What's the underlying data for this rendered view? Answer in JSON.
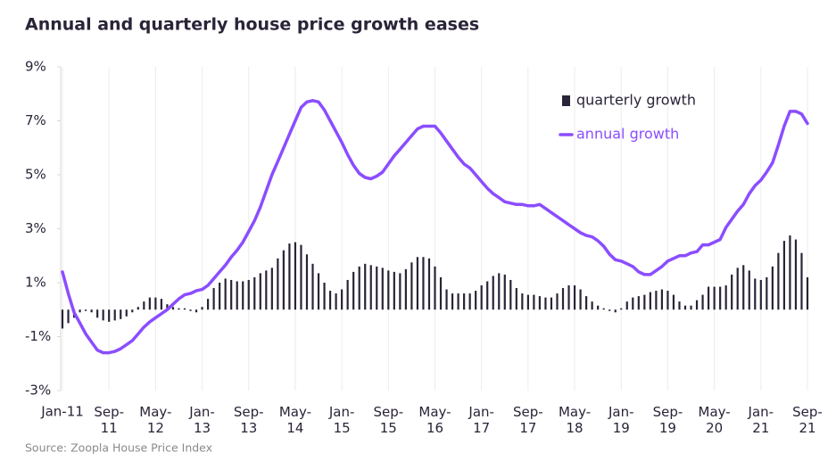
{
  "chart_data": {
    "type": "bar+line",
    "title": "Annual and quarterly house price growth eases",
    "source": "Source: Zoopla House Price Index",
    "categories": [
      "Jan-11",
      null,
      null,
      null,
      null,
      null,
      null,
      null,
      "Sep-11",
      null,
      null,
      null,
      null,
      null,
      null,
      null,
      "May-12",
      null,
      null,
      null,
      null,
      null,
      null,
      null,
      "Jan-13",
      null,
      null,
      null,
      null,
      null,
      null,
      null,
      "Sep-13",
      null,
      null,
      null,
      null,
      null,
      null,
      null,
      "May-14",
      null,
      null,
      null,
      null,
      null,
      null,
      null,
      "Jan-15",
      null,
      null,
      null,
      null,
      null,
      null,
      null,
      "Sep-15",
      null,
      null,
      null,
      null,
      null,
      null,
      null,
      "May-16",
      null,
      null,
      null,
      null,
      null,
      null,
      null,
      "Jan-17",
      null,
      null,
      null,
      null,
      null,
      null,
      null,
      "Sep-17",
      null,
      null,
      null,
      null,
      null,
      null,
      null,
      "May-18",
      null,
      null,
      null,
      null,
      null,
      null,
      null,
      "Jan-19",
      null,
      null,
      null,
      null,
      null,
      null,
      null,
      "Sep-19",
      null,
      null,
      null,
      null,
      null,
      null,
      null,
      "May-20",
      null,
      null,
      null,
      null,
      null,
      null,
      null,
      "Jan-21",
      null,
      null,
      null,
      null,
      null,
      null,
      null,
      "Sep-21"
    ],
    "series": [
      {
        "name": "quarterly growth",
        "type": "bar",
        "color": "#2a2438",
        "values": [
          -0.7,
          -0.5,
          -0.3,
          -0.1,
          -0.05,
          -0.1,
          -0.3,
          -0.4,
          -0.45,
          -0.4,
          -0.35,
          -0.25,
          -0.1,
          0.1,
          0.3,
          0.45,
          0.45,
          0.4,
          0.2,
          0.1,
          0.05,
          0.05,
          -0.05,
          -0.1,
          0.1,
          0.4,
          0.8,
          1.0,
          1.15,
          1.1,
          1.05,
          1.05,
          1.1,
          1.2,
          1.35,
          1.45,
          1.55,
          1.9,
          2.2,
          2.45,
          2.5,
          2.4,
          2.05,
          1.7,
          1.35,
          1.0,
          0.7,
          0.6,
          0.75,
          1.1,
          1.4,
          1.6,
          1.7,
          1.65,
          1.6,
          1.55,
          1.45,
          1.4,
          1.35,
          1.5,
          1.75,
          1.95,
          1.95,
          1.9,
          1.6,
          1.2,
          0.75,
          0.6,
          0.6,
          0.6,
          0.6,
          0.7,
          0.9,
          1.05,
          1.25,
          1.35,
          1.3,
          1.1,
          0.8,
          0.6,
          0.55,
          0.55,
          0.5,
          0.45,
          0.45,
          0.6,
          0.8,
          0.9,
          0.9,
          0.75,
          0.5,
          0.3,
          0.15,
          0.05,
          -0.05,
          -0.1,
          0.05,
          0.3,
          0.45,
          0.5,
          0.55,
          0.65,
          0.7,
          0.75,
          0.7,
          0.55,
          0.3,
          0.15,
          0.15,
          0.35,
          0.55,
          0.85,
          0.85,
          0.85,
          0.9,
          1.3,
          1.55,
          1.65,
          1.45,
          1.15,
          1.1,
          1.2,
          1.6,
          2.1,
          2.55,
          2.75,
          2.6,
          2.1,
          1.2
        ]
      },
      {
        "name": "annual growth",
        "type": "line",
        "color": "#8b4dff",
        "values": [
          1.4,
          0.6,
          -0.1,
          -0.5,
          -0.9,
          -1.2,
          -1.5,
          -1.6,
          -1.6,
          -1.55,
          -1.45,
          -1.3,
          -1.15,
          -0.9,
          -0.65,
          -0.45,
          -0.3,
          -0.15,
          0.0,
          0.2,
          0.4,
          0.55,
          0.6,
          0.7,
          0.75,
          0.9,
          1.15,
          1.4,
          1.65,
          1.95,
          2.2,
          2.5,
          2.9,
          3.3,
          3.8,
          4.4,
          5.0,
          5.5,
          6.0,
          6.5,
          7.0,
          7.5,
          7.7,
          7.75,
          7.7,
          7.4,
          7.0,
          6.6,
          6.2,
          5.75,
          5.35,
          5.05,
          4.9,
          4.85,
          4.95,
          5.1,
          5.4,
          5.7,
          5.95,
          6.2,
          6.45,
          6.7,
          6.8,
          6.8,
          6.8,
          6.55,
          6.25,
          5.95,
          5.65,
          5.4,
          5.25,
          5.0,
          4.75,
          4.5,
          4.3,
          4.15,
          4.0,
          3.95,
          3.9,
          3.9,
          3.85,
          3.85,
          3.9,
          3.75,
          3.6,
          3.45,
          3.3,
          3.15,
          3.0,
          2.85,
          2.75,
          2.7,
          2.55,
          2.35,
          2.05,
          1.85,
          1.8,
          1.7,
          1.6,
          1.4,
          1.3,
          1.3,
          1.45,
          1.6,
          1.8,
          1.9,
          2.0,
          2.0,
          2.1,
          2.15,
          2.4,
          2.4,
          2.5,
          2.6,
          3.05,
          3.35,
          3.65,
          3.9,
          4.3,
          4.6,
          4.8,
          5.1,
          5.45,
          6.1,
          6.8,
          7.35,
          7.35,
          7.25,
          6.9
        ]
      }
    ],
    "ylim": [
      -3,
      9
    ],
    "yticks": [
      {
        "value": -3,
        "label": "-3%"
      },
      {
        "value": -1,
        "label": "-1%"
      },
      {
        "value": 1,
        "label": "1%"
      },
      {
        "value": 3,
        "label": "3%"
      },
      {
        "value": 5,
        "label": "5%"
      },
      {
        "value": 7,
        "label": "7%"
      },
      {
        "value": 9,
        "label": "9%"
      }
    ],
    "grid": false,
    "legend": "top-right"
  }
}
